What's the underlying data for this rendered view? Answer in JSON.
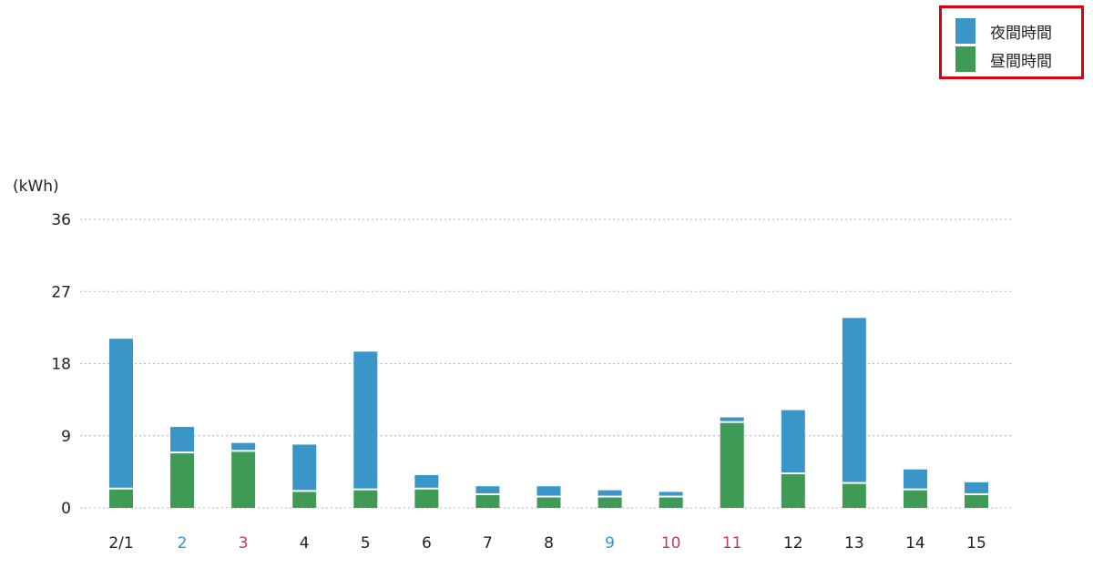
{
  "legend": {
    "items": [
      {
        "label": "夜間時間",
        "color": "#3a95c8"
      },
      {
        "label": "昼間時間",
        "color": "#3f9a55"
      }
    ],
    "border_color": "#e0000b"
  },
  "chart_data": {
    "type": "bar",
    "stacked": true,
    "ylabel": "(kWh)",
    "ylim": [
      0,
      36
    ],
    "yticks": [
      "36",
      "27",
      "18",
      "9",
      "0"
    ],
    "grid": true,
    "categories": [
      "2/1",
      "2",
      "3",
      "4",
      "5",
      "6",
      "7",
      "8",
      "9",
      "10",
      "11",
      "12",
      "13",
      "14",
      "15"
    ],
    "category_colors": [
      "#222222",
      "#3a95c8",
      "#c0396b",
      "#222222",
      "#222222",
      "#222222",
      "#222222",
      "#222222",
      "#3a95c8",
      "#c0396b",
      "#c0396b",
      "#222222",
      "#222222",
      "#222222",
      "#222222"
    ],
    "series": [
      {
        "name": "昼間時間",
        "color": "#3f9a55",
        "values": [
          2.3,
          6.8,
          7.0,
          2.0,
          2.2,
          2.3,
          1.6,
          1.3,
          1.3,
          1.3,
          10.6,
          4.2,
          3.0,
          2.2,
          1.6
        ]
      },
      {
        "name": "夜間時間",
        "color": "#3a95c8",
        "values": [
          18.8,
          3.3,
          1.1,
          5.9,
          17.3,
          1.8,
          1.1,
          1.4,
          0.9,
          0.7,
          0.7,
          8.0,
          20.7,
          2.6,
          1.6
        ]
      }
    ]
  }
}
